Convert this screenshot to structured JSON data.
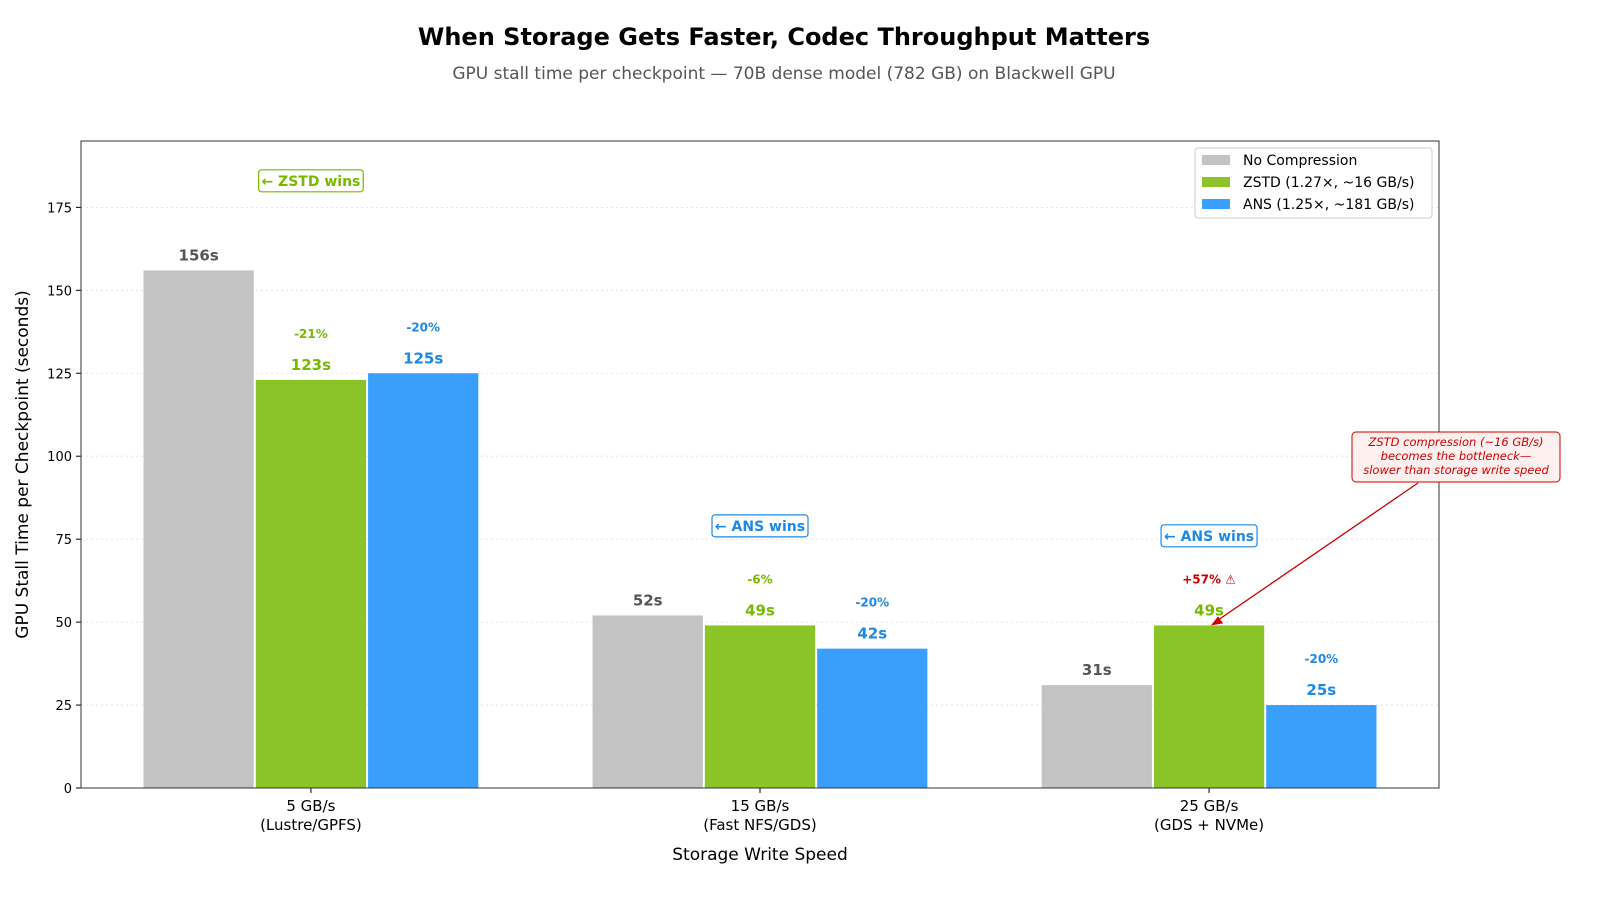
{
  "chart_data": {
    "type": "bar",
    "title": "When Storage Gets Faster, Codec Throughput Matters",
    "subtitle": "GPU stall time per checkpoint — 70B dense model (782 GB) on Blackwell GPU",
    "xlabel": "Storage Write Speed",
    "ylabel": "GPU Stall Time per Checkpoint (seconds)",
    "ylim": [
      0,
      195
    ],
    "yticks": [
      0,
      25,
      50,
      75,
      100,
      125,
      150,
      175
    ],
    "grid": "horizontal dotted",
    "legend_position": "top-right",
    "categories": [
      [
        "5 GB/s",
        "(Lustre/GPFS)"
      ],
      [
        "15 GB/s",
        "(Fast NFS/GDS)"
      ],
      [
        "25 GB/s",
        "(GDS + NVMe)"
      ]
    ],
    "series": [
      {
        "name": "No Compression",
        "color": "#c3c3c3",
        "label_color": "#555555",
        "values": [
          156,
          52,
          31
        ],
        "labels": [
          "156s",
          "52s",
          "31s"
        ],
        "deltas": [
          "",
          "",
          ""
        ]
      },
      {
        "name": "ZSTD (1.27×, ~16 GB/s)",
        "color": "#8ac426",
        "label_color": "#76b900",
        "values": [
          123,
          49,
          49
        ],
        "labels": [
          "123s",
          "49s",
          "49s"
        ],
        "deltas": [
          "-21%",
          "-6%",
          "+57% ⚠"
        ]
      },
      {
        "name": "ANS (1.25×, ~181 GB/s)",
        "color": "#3a9efd",
        "label_color": "#1e88e5",
        "values": [
          125,
          42,
          25
        ],
        "labels": [
          "125s",
          "42s",
          "25s"
        ],
        "deltas": [
          "-20%",
          "-20%",
          "-20%"
        ]
      }
    ],
    "delta_warning_color": "#cc0000",
    "winner_boxes": [
      {
        "category": 0,
        "text": "← ZSTD wins",
        "color": "#76b900",
        "y": 183
      },
      {
        "category": 1,
        "text": "← ANS wins",
        "color": "#1e88e5",
        "y": 79
      },
      {
        "category": 2,
        "text": "← ANS wins",
        "color": "#1e88e5",
        "y": 76
      }
    ],
    "annotation": {
      "lines": [
        "ZSTD compression (~16 GB/s)",
        "becomes the bottleneck—",
        "slower than storage write speed"
      ],
      "color": "#cc0000",
      "points_to": {
        "category": 2,
        "series": 1,
        "value": 49
      }
    }
  }
}
